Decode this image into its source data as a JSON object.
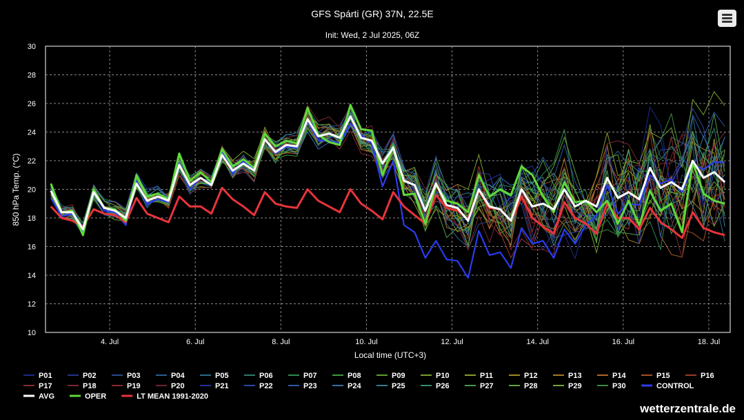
{
  "header": {
    "menu_icon": "hamburger-menu-icon"
  },
  "footer": {
    "site": "wetterzentrale.de"
  },
  "colors": {
    "avg": "#ffffff",
    "oper": "#5fd93a",
    "control": "#2b3cf0",
    "ltmean": "#e8343b"
  },
  "chart_data": {
    "type": "line",
    "title": "GFS Spárti (GR) 37N, 22.5E",
    "subtitle": "Init: Wed, 2 Jul 2025, 06Z",
    "xlabel": "Local time (UTC+3)",
    "ylabel": "850 hPa Temp. (°C)",
    "ylim": [
      10,
      30
    ],
    "yticks": [
      "10",
      "12",
      "14",
      "16",
      "18",
      "20",
      "22",
      "24",
      "26",
      "28",
      "30"
    ],
    "xlim": [
      2.5,
      18.5
    ],
    "xticks": [
      {
        "x": 4,
        "label": "4. Jul"
      },
      {
        "x": 6,
        "label": "6. Jul"
      },
      {
        "x": 8,
        "label": "8. Jul"
      },
      {
        "x": 10,
        "label": "10. Jul"
      },
      {
        "x": 12,
        "label": "12. Jul"
      },
      {
        "x": 14,
        "label": "14. Jul"
      },
      {
        "x": 16,
        "label": "16. Jul"
      },
      {
        "x": 18,
        "label": "18. Jul"
      }
    ],
    "grid": true,
    "legend_position": "bottom",
    "x_start": 2.625,
    "x_step": 0.25,
    "oper": [
      20.4,
      18.4,
      18.5,
      16.8,
      20.0,
      18.7,
      18.6,
      17.8,
      21.0,
      19.5,
      19.7,
      19.3,
      22.5,
      20.6,
      21.2,
      20.5,
      22.8,
      21.6,
      22.1,
      21.5,
      23.9,
      23.0,
      23.4,
      23.2,
      25.7,
      23.8,
      23.3,
      23.1,
      25.9,
      24.2,
      24.1,
      21.0,
      23.0,
      19.6,
      19.7,
      17.6,
      20.3,
      19.2,
      19.0,
      18.4,
      21.0,
      19.5,
      20.0,
      19.6,
      21.6,
      21.0,
      19.5,
      18.4,
      20.5,
      19.1,
      19.2,
      18.4,
      19.2,
      17.6,
      19.2,
      17.5,
      19.9,
      18.5,
      19.0,
      17.0,
      21.9,
      19.7,
      19.2,
      19.0
    ],
    "avg": [
      19.9,
      18.4,
      18.4,
      17.2,
      19.8,
      18.7,
      18.5,
      18.0,
      20.4,
      19.2,
      19.5,
      19.2,
      21.7,
      20.3,
      20.8,
      20.3,
      22.4,
      21.3,
      21.8,
      21.3,
      23.5,
      22.6,
      23.1,
      23.0,
      24.9,
      23.7,
      23.9,
      23.6,
      25.1,
      23.6,
      23.4,
      21.8,
      22.9,
      20.6,
      20.3,
      18.5,
      20.4,
      18.9,
      18.7,
      17.8,
      20.0,
      18.8,
      18.6,
      17.8,
      20.0,
      18.8,
      19.0,
      18.6,
      20.0,
      18.8,
      19.2,
      18.8,
      20.8,
      19.4,
      19.8,
      19.3,
      21.5,
      20.1,
      20.5,
      20.0,
      22.0,
      20.8,
      21.2,
      20.5
    ],
    "control": [
      19.4,
      18.1,
      18.3,
      17.0,
      19.9,
      18.5,
      18.4,
      17.5,
      20.6,
      19.0,
      19.3,
      19.1,
      21.8,
      20.0,
      20.8,
      20.4,
      22.7,
      21.1,
      22.0,
      21.4,
      23.5,
      22.5,
      23.0,
      22.9,
      24.8,
      23.4,
      23.4,
      23.2,
      24.6,
      23.8,
      23.2,
      20.2,
      22.0,
      17.5,
      17.0,
      15.2,
      16.4,
      15.1,
      15.0,
      13.8,
      17.1,
      15.4,
      15.6,
      14.5,
      17.3,
      16.2,
      16.4,
      15.2,
      17.2,
      16.2,
      17.5,
      18.2,
      20.3,
      18.3,
      19.0,
      18.9,
      21.0,
      20.4,
      20.7,
      19.8,
      21.7,
      21.4,
      21.9,
      21.9
    ],
    "ltmean": [
      18.8,
      18.0,
      17.8,
      17.4,
      18.6,
      18.3,
      18.2,
      17.7,
      19.4,
      18.3,
      18.0,
      17.7,
      19.5,
      18.8,
      18.8,
      18.3,
      20.1,
      19.3,
      18.8,
      18.2,
      19.8,
      19.0,
      18.8,
      18.7,
      20.0,
      19.2,
      18.8,
      18.4,
      20.0,
      19.0,
      18.5,
      17.9,
      19.8,
      18.8,
      18.2,
      17.6,
      19.6,
      18.7,
      18.5,
      17.9,
      19.9,
      18.7,
      18.6,
      17.8,
      19.5,
      18.0,
      17.4,
      16.9,
      19.1,
      18.0,
      17.6,
      16.9,
      19.0,
      18.0,
      18.0,
      17.2,
      18.7,
      17.7,
      17.2,
      16.6,
      18.4,
      17.3,
      17.0,
      16.8
    ],
    "members": [
      "P01",
      "P02",
      "P03",
      "P04",
      "P05",
      "P06",
      "P07",
      "P08",
      "P09",
      "P10",
      "P11",
      "P12",
      "P13",
      "P14",
      "P15",
      "P16",
      "P17",
      "P18",
      "P19",
      "P20",
      "P21",
      "P22",
      "P23",
      "P24",
      "P25",
      "P26",
      "P27",
      "P28",
      "P29",
      "P30"
    ],
    "member_colors": [
      "#1d2a8a",
      "#26358f",
      "#2a4a8c",
      "#2d5e92",
      "#2b6b88",
      "#2e7a6a",
      "#2f8a52",
      "#3d9a3d",
      "#5aa030",
      "#78a02c",
      "#8e9a28",
      "#9e8a26",
      "#a87a26",
      "#b06628",
      "#a8502a",
      "#9c3c2a",
      "#8a2e2c",
      "#7c2830",
      "#842a32",
      "#6e2430",
      "#28329a",
      "#2c46a8",
      "#3058a6",
      "#3470a4",
      "#327e8e",
      "#3a8c6c",
      "#4a9a4c",
      "#62a43c",
      "#70a832",
      "#3e8a40"
    ]
  },
  "legend": {
    "rows": [
      [
        {
          "label": "P01",
          "color": "#1d2a8a"
        },
        {
          "label": "P02",
          "color": "#26358f"
        },
        {
          "label": "P03",
          "color": "#2a4a8c"
        },
        {
          "label": "P04",
          "color": "#2d5e92"
        },
        {
          "label": "P05",
          "color": "#2b6b88"
        },
        {
          "label": "P06",
          "color": "#2e7a6a"
        },
        {
          "label": "P07",
          "color": "#2f8a52"
        },
        {
          "label": "P08",
          "color": "#3d9a3d"
        },
        {
          "label": "P09",
          "color": "#5aa030"
        },
        {
          "label": "P10",
          "color": "#78a02c"
        },
        {
          "label": "P11",
          "color": "#8e9a28"
        },
        {
          "label": "P12",
          "color": "#9e8a26"
        },
        {
          "label": "P13",
          "color": "#a87a26"
        },
        {
          "label": "P14",
          "color": "#b06628"
        },
        {
          "label": "P15",
          "color": "#a8502a"
        },
        {
          "label": "P16",
          "color": "#9c3c2a"
        }
      ],
      [
        {
          "label": "P17",
          "color": "#8a2e2c"
        },
        {
          "label": "P18",
          "color": "#7c2830"
        },
        {
          "label": "P19",
          "color": "#842a32"
        },
        {
          "label": "P20",
          "color": "#6e2430"
        },
        {
          "label": "P21",
          "color": "#28329a"
        },
        {
          "label": "P22",
          "color": "#2c46a8"
        },
        {
          "label": "P23",
          "color": "#3058a6"
        },
        {
          "label": "P24",
          "color": "#3470a4"
        },
        {
          "label": "P25",
          "color": "#327e8e"
        },
        {
          "label": "P26",
          "color": "#3a8c6c"
        },
        {
          "label": "P27",
          "color": "#4a9a4c"
        },
        {
          "label": "P28",
          "color": "#62a43c"
        },
        {
          "label": "P29",
          "color": "#70a832"
        },
        {
          "label": "P30",
          "color": "#3e8a40"
        },
        {
          "label": "CONTROL",
          "color": "#2b3cf0",
          "bold": true
        }
      ],
      [
        {
          "label": "AVG",
          "color": "#ffffff",
          "bold": true
        },
        {
          "label": "OPER",
          "color": "#5fd93a",
          "bold": true
        },
        {
          "label": "LT MEAN 1991-2020",
          "color": "#e8343b",
          "bold": true
        }
      ]
    ]
  }
}
